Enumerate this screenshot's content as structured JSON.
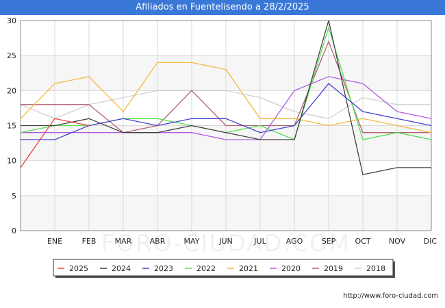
{
  "header": {
    "title": "Afiliados en Fuentelisendo a 28/2/2025"
  },
  "footer": {
    "source": "http://www.foro-ciudad.com"
  },
  "watermark": "FORO-CIUDAD.COM",
  "chart_data": {
    "type": "line",
    "title": "Afiliados en Fuentelisendo a 28/2/2025",
    "xlabel": "",
    "ylabel": "",
    "categories": [
      "",
      "ENE",
      "FEB",
      "MAR",
      "ABR",
      "MAY",
      "JUN",
      "JUL",
      "AGO",
      "SEP",
      "OCT",
      "NOV",
      "DIC"
    ],
    "ylim": [
      0,
      30
    ],
    "yticks": [
      0,
      5,
      10,
      15,
      20,
      25,
      30
    ],
    "grid": true,
    "legend_position": "bottom",
    "series": [
      {
        "name": "2018",
        "color": "#d0d0d0",
        "values": [
          18,
          16,
          18,
          19,
          20,
          20,
          20,
          19,
          17,
          16,
          19,
          18,
          18
        ]
      },
      {
        "name": "2019",
        "color": "#b06070",
        "values": [
          18,
          18,
          18,
          14,
          15,
          20,
          15,
          15,
          15,
          27,
          14,
          14,
          14
        ]
      },
      {
        "name": "2020",
        "color": "#b05ce0",
        "values": [
          14,
          14,
          14,
          14,
          14,
          14,
          13,
          13,
          20,
          22,
          21,
          17,
          16
        ]
      },
      {
        "name": "2021",
        "color": "#f5b840",
        "values": [
          16,
          21,
          22,
          17,
          24,
          24,
          23,
          16,
          16,
          15,
          16,
          15,
          14
        ]
      },
      {
        "name": "2022",
        "color": "#50e050",
        "values": [
          14,
          15,
          15,
          16,
          16,
          15,
          14,
          15,
          13,
          29,
          13,
          14,
          13
        ]
      },
      {
        "name": "2023",
        "color": "#4040d0",
        "values": [
          13,
          13,
          15,
          16,
          15,
          16,
          16,
          14,
          15,
          21,
          17,
          16,
          15
        ]
      },
      {
        "name": "2024",
        "color": "#404040",
        "values": [
          15,
          15,
          16,
          14,
          14,
          15,
          14,
          13,
          13,
          30,
          8,
          9,
          9
        ]
      },
      {
        "name": "2025",
        "color": "#e04040",
        "values": [
          9,
          16,
          15,
          null,
          null,
          null,
          null,
          null,
          null,
          null,
          null,
          null,
          null
        ]
      }
    ],
    "legend_order": [
      "2025",
      "2024",
      "2023",
      "2022",
      "2021",
      "2020",
      "2019",
      "2018"
    ]
  }
}
